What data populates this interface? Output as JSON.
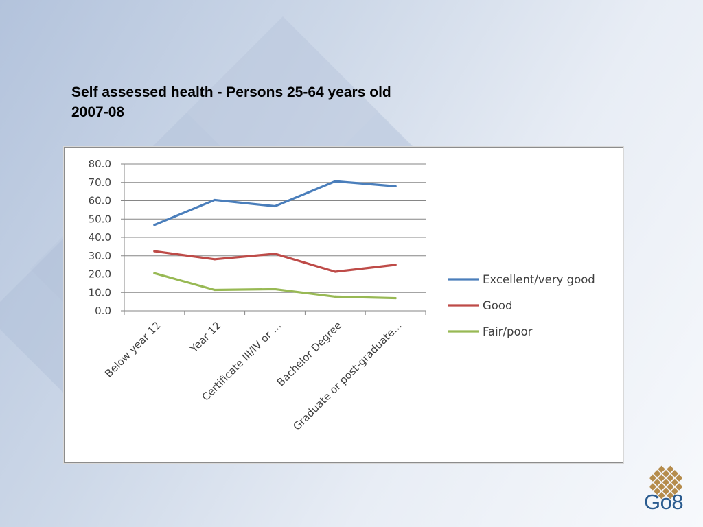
{
  "slide": {
    "title_line1": "Self assessed health - Persons 25-64 years old",
    "title_line2": "2007-08",
    "logo_text": "Go8"
  },
  "colors": {
    "excellent": "#4a7ebb",
    "good": "#be4b48",
    "fair": "#98b954",
    "grid": "#868686",
    "logo_gold": "#b58c4c",
    "logo_blue": "#2a5b8f"
  },
  "chart_data": {
    "type": "line",
    "title": "",
    "xlabel": "",
    "ylabel": "",
    "ylim": [
      0,
      80
    ],
    "y_ticks": [
      "0.0",
      "10.0",
      "20.0",
      "30.0",
      "40.0",
      "50.0",
      "60.0",
      "70.0",
      "80.0"
    ],
    "categories": [
      "Below year 12",
      "Year 12",
      "Certificate III/IV or …",
      "Bachelor Degree",
      "Graduate or post-graduate…"
    ],
    "grid": true,
    "legend_position": "right",
    "series": [
      {
        "name": "Excellent/very good",
        "color": "#4a7ebb",
        "values": [
          46.8,
          60.4,
          57.0,
          70.6,
          67.9
        ]
      },
      {
        "name": "Good",
        "color": "#be4b48",
        "values": [
          32.5,
          28.1,
          31.1,
          21.3,
          25.1
        ]
      },
      {
        "name": "Fair/poor",
        "color": "#98b954",
        "values": [
          20.5,
          11.4,
          11.8,
          7.7,
          6.9
        ]
      }
    ]
  }
}
